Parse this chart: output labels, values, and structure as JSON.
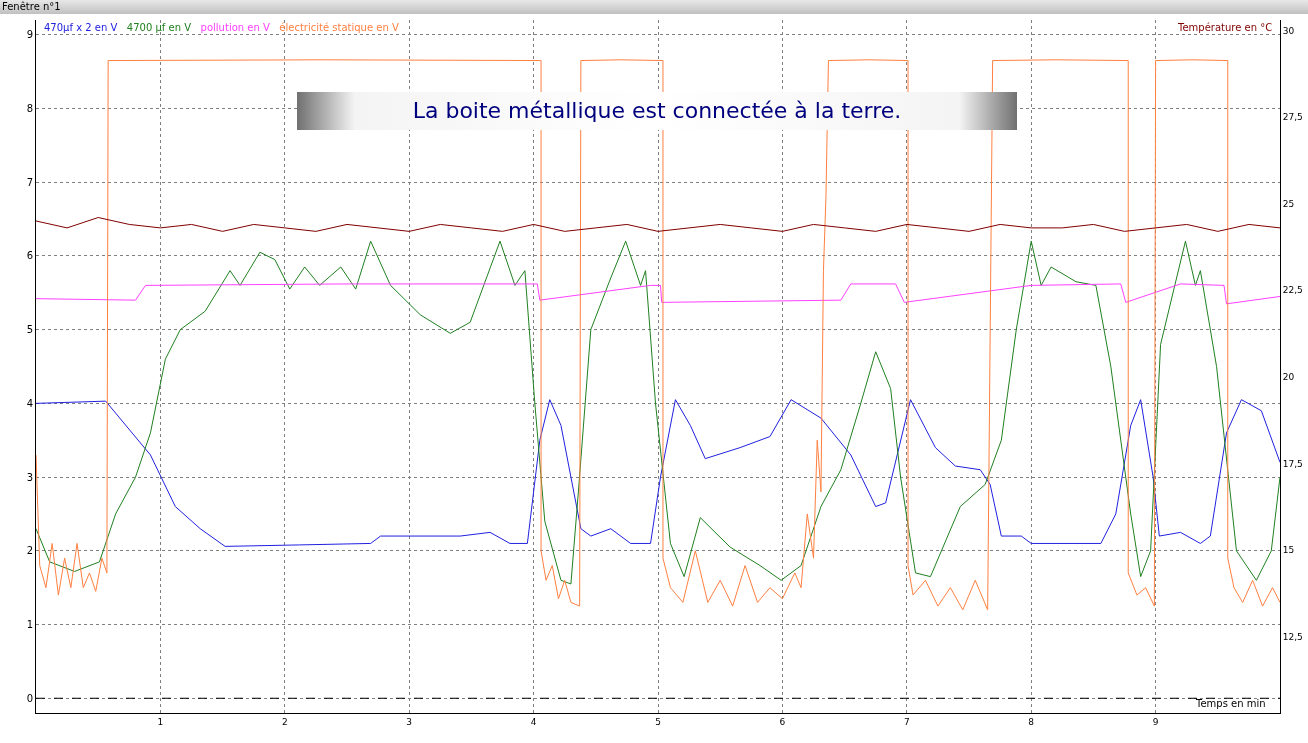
{
  "chart_data": {
    "type": "line",
    "title": "Fenêtre n°1",
    "xlabel": "Temps en min",
    "y2label": "Température en °C",
    "annotations": [
      "La boite métallique est connectée à la terre."
    ],
    "xlim": [
      0,
      10
    ],
    "xticks": [
      1,
      2,
      3,
      4,
      5,
      6,
      7,
      8,
      9
    ],
    "ylim": [
      -0.2,
      9.2
    ],
    "yticks": [
      0,
      1,
      2,
      3,
      4,
      5,
      6,
      7,
      8,
      9
    ],
    "y2lim": [
      10.3,
      30.3
    ],
    "y2ticks": [
      {
        "value": 12.5,
        "label": "12,5"
      },
      15,
      {
        "value": 17.5,
        "label": "17,5"
      },
      20,
      {
        "value": 22.5,
        "label": "22,5"
      },
      25,
      {
        "value": 27.5,
        "label": "27,5"
      },
      30
    ],
    "grid": true,
    "legend": "top left",
    "marker": "none",
    "line_style": "solid",
    "ref_lines": [
      {
        "axis": "y",
        "value": 0,
        "color": "#000000",
        "line_style": "dashed"
      }
    ],
    "series": [
      {
        "name": "470µf x 2 en V",
        "color": "#2020e0",
        "x": [
          0,
          0.56,
          0.92,
          1.12,
          1.32,
          1.52,
          2.12,
          2.69,
          2.77,
          3.41,
          3.65,
          3.81,
          3.95,
          4.05,
          4.13,
          4.22,
          4.38,
          4.46,
          4.62,
          4.78,
          4.94,
          5.02,
          5.14,
          5.26,
          5.38,
          5.66,
          5.9,
          6.07,
          6.31,
          6.55,
          6.75,
          6.83,
          7.03,
          7.23,
          7.39,
          7.59,
          7.67,
          7.76,
          7.92,
          8.0,
          8.56,
          8.68,
          8.8,
          8.88,
          8.98,
          9.03,
          9.2,
          9.36,
          9.44,
          9.57,
          9.69,
          9.85,
          10
        ],
        "values": [
          4.0,
          4.03,
          3.3,
          2.6,
          2.3,
          2.06,
          2.08,
          2.1,
          2.2,
          2.2,
          2.25,
          2.1,
          2.1,
          3.5,
          4.05,
          3.7,
          2.3,
          2.2,
          2.3,
          2.1,
          2.1,
          3.0,
          4.05,
          3.7,
          3.25,
          3.4,
          3.55,
          4.05,
          3.8,
          3.3,
          2.6,
          2.65,
          4.05,
          3.4,
          3.15,
          3.1,
          2.9,
          2.2,
          2.2,
          2.1,
          2.1,
          2.5,
          3.7,
          4.05,
          3.0,
          2.2,
          2.25,
          2.1,
          2.2,
          3.6,
          4.05,
          3.9,
          3.2
        ]
      },
      {
        "name": "4700 µf en V",
        "color": "#208020",
        "x": [
          0,
          0.11,
          0.31,
          0.51,
          0.64,
          0.8,
          0.92,
          1.04,
          1.16,
          1.36,
          1.56,
          1.64,
          1.8,
          1.92,
          2.04,
          2.16,
          2.28,
          2.45,
          2.57,
          2.69,
          2.85,
          3.09,
          3.33,
          3.49,
          3.73,
          3.85,
          3.93,
          4.01,
          4.09,
          4.22,
          4.3,
          4.36,
          4.46,
          4.62,
          4.74,
          4.86,
          4.9,
          4.98,
          5.1,
          5.21,
          5.34,
          5.58,
          5.82,
          5.99,
          6.15,
          6.31,
          6.47,
          6.63,
          6.75,
          6.87,
          6.95,
          7.07,
          7.19,
          7.43,
          7.63,
          7.76,
          7.88,
          8.0,
          8.08,
          8.16,
          8.36,
          8.52,
          8.64,
          8.8,
          8.88,
          8.96,
          9.04,
          9.24,
          9.32,
          9.36,
          9.49,
          9.65,
          9.81,
          9.93,
          10
        ],
        "values": [
          2.3,
          1.85,
          1.72,
          1.85,
          2.5,
          3.0,
          3.6,
          4.6,
          5.0,
          5.25,
          5.8,
          5.6,
          6.05,
          5.95,
          5.55,
          5.85,
          5.6,
          5.85,
          5.55,
          6.2,
          5.6,
          5.2,
          4.95,
          5.1,
          6.2,
          5.6,
          5.8,
          4.0,
          2.4,
          1.6,
          1.55,
          2.8,
          5.0,
          5.7,
          6.2,
          5.6,
          5.8,
          4.0,
          2.1,
          1.65,
          2.45,
          2.05,
          1.8,
          1.6,
          1.8,
          2.6,
          3.1,
          4.0,
          4.7,
          4.2,
          3.0,
          1.7,
          1.65,
          2.6,
          2.9,
          3.5,
          5.0,
          6.2,
          5.6,
          5.85,
          5.65,
          5.6,
          4.5,
          2.5,
          1.65,
          2.0,
          4.8,
          6.2,
          5.6,
          5.8,
          4.5,
          2.0,
          1.6,
          2.0,
          3.0
        ]
      },
      {
        "name": "pollution en V",
        "color": "#ff40ff",
        "x": [
          0,
          0.8,
          0.88,
          2.5,
          4.03,
          4.05,
          4.94,
          5.02,
          5.03,
          6.47,
          6.55,
          6.91,
          6.98,
          8.0,
          8.72,
          8.76,
          9.2,
          9.55,
          9.57,
          10
        ],
        "values": [
          5.42,
          5.4,
          5.6,
          5.62,
          5.62,
          5.4,
          5.6,
          5.6,
          5.37,
          5.4,
          5.62,
          5.62,
          5.37,
          5.6,
          5.62,
          5.37,
          5.62,
          5.6,
          5.35,
          5.45
        ]
      },
      {
        "name": "électricité statique en V",
        "color": "#ff8040",
        "x": [
          0,
          0.03,
          0.08,
          0.13,
          0.18,
          0.23,
          0.28,
          0.33,
          0.38,
          0.43,
          0.48,
          0.53,
          0.57,
          0.58,
          2.3,
          4.06,
          4.06,
          4.1,
          4.15,
          4.2,
          4.25,
          4.3,
          4.37,
          4.38,
          4.7,
          5.04,
          5.04,
          5.1,
          5.2,
          5.3,
          5.4,
          5.5,
          5.6,
          5.7,
          5.8,
          5.9,
          6.0,
          6.1,
          6.15,
          6.2,
          6.25,
          6.28,
          6.31,
          6.33,
          6.35,
          6.37,
          6.7,
          7.01,
          7.01,
          7.05,
          7.15,
          7.25,
          7.35,
          7.45,
          7.55,
          7.65,
          7.69,
          8.2,
          8.78,
          8.78,
          8.85,
          8.92,
          8.99,
          9.0,
          9.3,
          9.58,
          9.58,
          9.63,
          9.7,
          9.78,
          9.86,
          9.94,
          10
        ],
        "values": [
          3.3,
          1.8,
          1.5,
          2.1,
          1.4,
          1.9,
          1.5,
          2.1,
          1.5,
          1.7,
          1.45,
          1.9,
          1.7,
          8.65,
          8.66,
          8.65,
          2.0,
          1.6,
          1.8,
          1.35,
          1.6,
          1.3,
          1.25,
          8.65,
          8.66,
          8.65,
          1.9,
          1.5,
          1.3,
          2.0,
          1.3,
          1.6,
          1.25,
          1.8,
          1.3,
          1.5,
          1.35,
          1.7,
          1.5,
          2.5,
          1.9,
          3.5,
          2.8,
          5.8,
          6.8,
          8.65,
          8.66,
          8.65,
          1.8,
          1.4,
          1.6,
          1.25,
          1.5,
          1.2,
          1.6,
          1.2,
          8.65,
          8.66,
          8.65,
          1.7,
          1.4,
          1.5,
          1.25,
          8.65,
          8.66,
          8.65,
          1.9,
          1.5,
          1.3,
          1.6,
          1.25,
          1.5,
          1.3
        ]
      },
      {
        "color": "#800000",
        "axis": "y2",
        "x": [
          0,
          0.25,
          0.5,
          0.75,
          1,
          1.25,
          1.5,
          1.75,
          2,
          2.25,
          2.5,
          2.75,
          3,
          3.25,
          3.5,
          3.75,
          4,
          4.25,
          4.5,
          4.75,
          5,
          5.25,
          5.5,
          5.75,
          6,
          6.25,
          6.5,
          6.75,
          7,
          7.25,
          7.5,
          7.75,
          8,
          8.25,
          8.5,
          8.75,
          9,
          9.25,
          9.5,
          9.75,
          10
        ],
        "values": [
          24.5,
          24.3,
          24.6,
          24.4,
          24.3,
          24.4,
          24.2,
          24.4,
          24.3,
          24.2,
          24.4,
          24.3,
          24.2,
          24.4,
          24.3,
          24.2,
          24.4,
          24.2,
          24.3,
          24.4,
          24.2,
          24.3,
          24.4,
          24.3,
          24.2,
          24.4,
          24.3,
          24.2,
          24.4,
          24.3,
          24.2,
          24.4,
          24.3,
          24.3,
          24.4,
          24.2,
          24.3,
          24.4,
          24.2,
          24.4,
          24.3
        ]
      }
    ]
  }
}
